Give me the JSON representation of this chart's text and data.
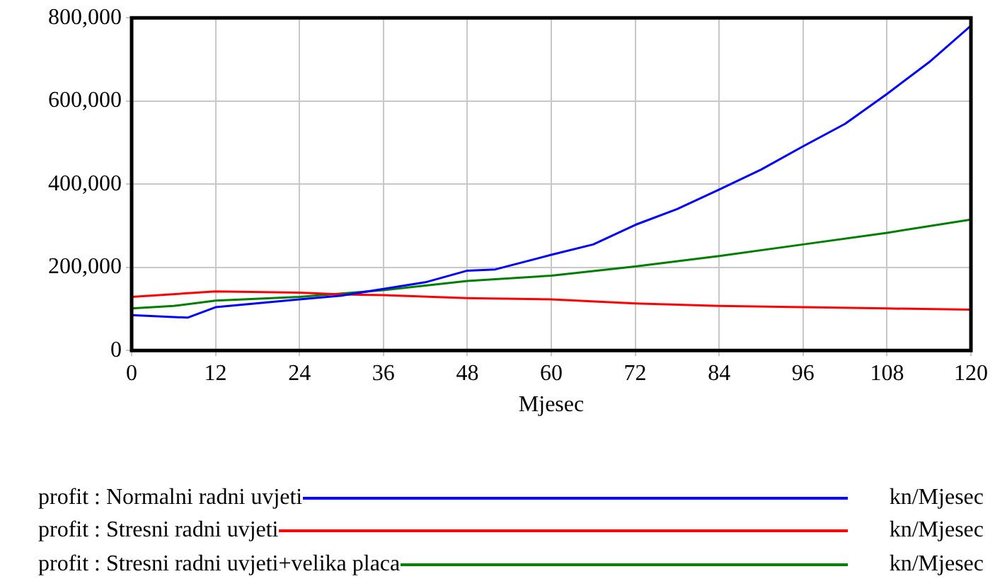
{
  "chart_data": {
    "type": "line",
    "xlabel": "Mjesec",
    "x": [
      0,
      8,
      12,
      24,
      30,
      36,
      42,
      48,
      52,
      60,
      66,
      72,
      78,
      84,
      90,
      96,
      102,
      108,
      114,
      120
    ],
    "series": [
      {
        "name": "profit : Normalni radni uvjeti",
        "color": "#0000ff",
        "values": [
          85000,
          79000,
          104000,
          123000,
          132000,
          148000,
          164000,
          192000,
          195000,
          230000,
          255000,
          302000,
          340000,
          387000,
          435000,
          491000,
          545000,
          617000,
          693000,
          781000
        ]
      },
      {
        "name": "profit : Stresni radni uvjeti",
        "color": "#ff0000",
        "x": [
          0,
          12,
          24,
          30,
          36,
          48,
          60,
          72,
          84,
          96,
          108,
          120
        ],
        "values": [
          129000,
          142000,
          139000,
          135000,
          133000,
          126000,
          123000,
          113000,
          107000,
          104000,
          101000,
          98000
        ]
      },
      {
        "name": "profit : Stresni radni uvjeti+velika placa",
        "color": "#008000",
        "x": [
          0,
          6,
          12,
          24,
          36,
          48,
          60,
          72,
          84,
          96,
          108,
          120
        ],
        "values": [
          101000,
          107000,
          120000,
          129000,
          145000,
          167000,
          180000,
          202000,
          227000,
          255000,
          283000,
          315000
        ]
      }
    ],
    "annotations": [
      "kn/Mjesec",
      "kn/Mjesec",
      "kn/Mjesec"
    ],
    "xlim": [
      0,
      120
    ],
    "xticks": [
      0,
      12,
      24,
      36,
      48,
      60,
      72,
      84,
      96,
      108,
      120
    ],
    "ylim": [
      0,
      800000
    ],
    "yticks": [
      0,
      {
        "value": 200000,
        "label": "200,000"
      },
      {
        "value": 400000,
        "label": "400,000"
      },
      {
        "value": 600000,
        "label": "600,000"
      },
      {
        "value": 800000,
        "label": "800,000"
      }
    ],
    "grid": true,
    "legend": "bottom",
    "marker": "none",
    "line_style": "solid"
  }
}
